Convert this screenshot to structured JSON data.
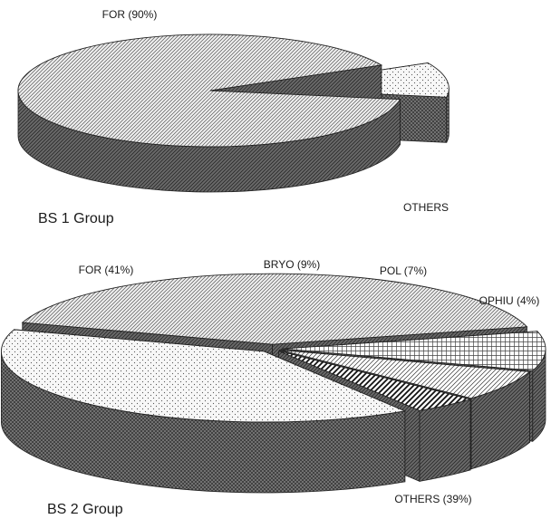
{
  "chart_data": [
    {
      "type": "pie",
      "title": "BS 1 Group",
      "categories": [
        "FOR",
        "OTHERS"
      ],
      "labels": [
        "FOR (90%)",
        "OTHERS"
      ],
      "values": [
        90,
        10
      ],
      "exploded": [
        "OTHERS"
      ],
      "style": "3d"
    },
    {
      "type": "pie",
      "title": "BS 2 Group",
      "categories": [
        "FOR",
        "BRYO",
        "POL",
        "OPHIU",
        "OTHERS"
      ],
      "labels": [
        "FOR (41%)",
        "BRYO (9%)",
        "POL (7%)",
        "OPHIU (4%)",
        "OTHERS (39%)"
      ],
      "values": [
        41,
        9,
        7,
        4,
        39
      ],
      "exploded": [
        "FOR",
        "BRYO",
        "POL",
        "OPHIU",
        "OTHERS"
      ],
      "style": "3d"
    }
  ]
}
